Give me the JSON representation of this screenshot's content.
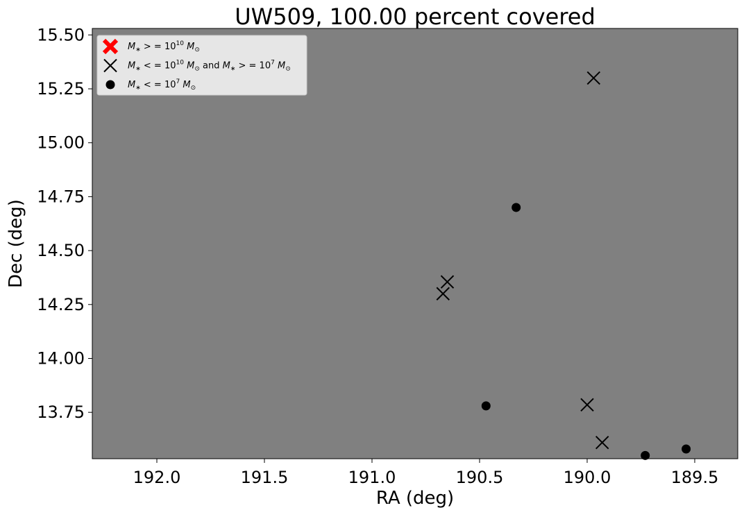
{
  "chart_data": {
    "type": "scatter",
    "title": "UW509, 100.00 percent covered",
    "xlabel": "RA (deg)",
    "ylabel": "Dec (deg)",
    "xlim": [
      192.3,
      189.3
    ],
    "ylim": [
      13.535,
      15.53
    ],
    "x_inverted": true,
    "background_color": "#808080",
    "grid": false,
    "legend_position": "top-left",
    "x_ticks": [
      {
        "value": 192.0,
        "label": "192.0"
      },
      {
        "value": 191.5,
        "label": "191.5"
      },
      {
        "value": 191.0,
        "label": "191.0"
      },
      {
        "value": 190.5,
        "label": "190.5"
      },
      {
        "value": 190.0,
        "label": "190.0"
      },
      {
        "value": 189.5,
        "label": "189.5"
      }
    ],
    "y_ticks": [
      {
        "value": 13.75,
        "label": "13.75"
      },
      {
        "value": 14.0,
        "label": "14.00"
      },
      {
        "value": 14.25,
        "label": "14.25"
      },
      {
        "value": 14.5,
        "label": "14.50"
      },
      {
        "value": 14.75,
        "label": "14.75"
      },
      {
        "value": 15.0,
        "label": "15.00"
      },
      {
        "value": 15.25,
        "label": "15.25"
      },
      {
        "value": 15.5,
        "label": "15.50"
      }
    ],
    "series": [
      {
        "name": "M* >= 10^10 M☉",
        "legend": {
          "base": "M",
          "sub": "∗",
          "op": " > = ",
          "num": "10",
          "sup": "10",
          "tail": "M",
          "tailsub": "⊙"
        },
        "marker": "X",
        "color": "#ff0000",
        "points": []
      },
      {
        "name": "M* <= 10^10 M☉ and M* >= 10^7 M☉",
        "legend": {
          "base": "M",
          "sub": "∗",
          "op": " < = ",
          "num": "10",
          "sup": "10",
          "tail": "M",
          "tailsub": "⊙",
          "and": " and ",
          "base2": "M",
          "sub2": "∗",
          "op2": " > = ",
          "num2": "10",
          "sup2": "7",
          "tail2": "M",
          "tailsub2": "⊙"
        },
        "marker": "x",
        "color": "#000000",
        "points": [
          {
            "x": 189.97,
            "y": 15.3
          },
          {
            "x": 190.65,
            "y": 14.355
          },
          {
            "x": 190.67,
            "y": 14.3
          },
          {
            "x": 190.0,
            "y": 13.785
          },
          {
            "x": 189.93,
            "y": 13.61
          }
        ]
      },
      {
        "name": "M* <= 10^7 M☉",
        "legend": {
          "base": "M",
          "sub": "∗",
          "op": " < = ",
          "num": "10",
          "sup": "7",
          "tail": "M",
          "tailsub": "⊙"
        },
        "marker": "o",
        "color": "#000000",
        "points": [
          {
            "x": 190.33,
            "y": 14.7
          },
          {
            "x": 190.47,
            "y": 13.78
          },
          {
            "x": 189.73,
            "y": 13.55
          },
          {
            "x": 189.54,
            "y": 13.58
          }
        ]
      }
    ]
  }
}
